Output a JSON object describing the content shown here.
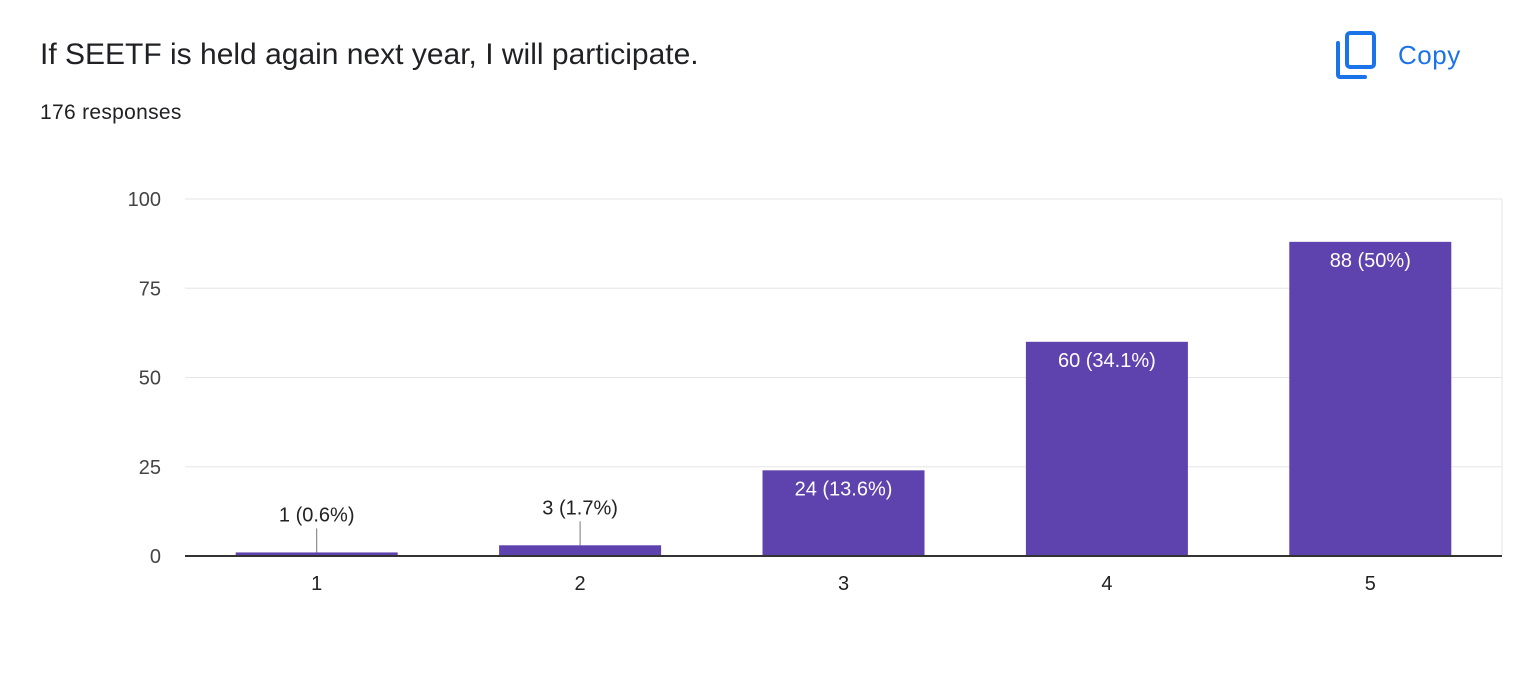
{
  "header": {
    "title": "If SEETF is held again next year, I will participate.",
    "responses": "176 responses",
    "copy_label": "Copy",
    "copy_icon": "copy-icon",
    "accent_color": "#1a73e8"
  },
  "chart_data": {
    "type": "bar",
    "categories": [
      "1",
      "2",
      "3",
      "4",
      "5"
    ],
    "values": [
      1,
      3,
      24,
      60,
      88
    ],
    "data_labels": [
      "1 (0.6%)",
      "3 (1.7%)",
      "24 (13.6%)",
      "60 (34.1%)",
      "88 (50%)"
    ],
    "yticks": [
      0,
      25,
      50,
      75,
      100
    ],
    "ylim": [
      0,
      100
    ],
    "bar_color": "#5e42ad",
    "grid": true,
    "title": "",
    "xlabel": "",
    "ylabel": ""
  }
}
